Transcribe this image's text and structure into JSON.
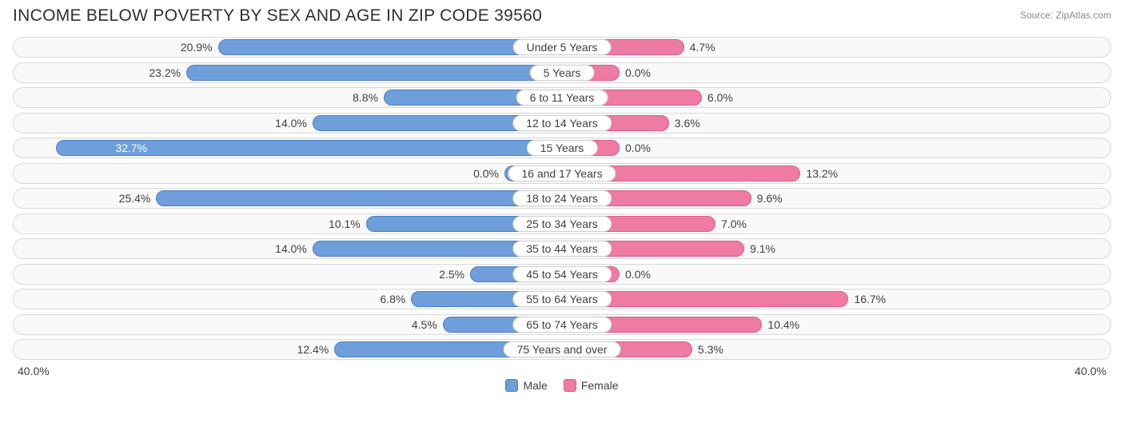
{
  "title": "INCOME BELOW POVERTY BY SEX AND AGE IN ZIP CODE 39560",
  "source": "Source: ZipAtlas.com",
  "axis_max": 40.0,
  "axis_label_left": "40.0%",
  "axis_label_right": "40.0%",
  "colors": {
    "male_fill": "#6e9fdb",
    "male_border": "#4d7ec2",
    "female_fill": "#ee7ba4",
    "female_border": "#dc5b8a",
    "row_border": "#d9d9d9",
    "row_bg": "#f9f9f9",
    "text": "#404040",
    "title_text": "#303030",
    "source_text": "#8a8a8a",
    "background": "#ffffff"
  },
  "legend": {
    "male": "Male",
    "female": "Female"
  },
  "pill_half_pct": 10.5,
  "rows": [
    {
      "category": "Under 5 Years",
      "male": 20.9,
      "female": 4.7
    },
    {
      "category": "5 Years",
      "male": 23.2,
      "female": 0.0
    },
    {
      "category": "6 to 11 Years",
      "male": 8.8,
      "female": 6.0
    },
    {
      "category": "12 to 14 Years",
      "male": 14.0,
      "female": 3.6
    },
    {
      "category": "15 Years",
      "male": 32.7,
      "female": 0.0
    },
    {
      "category": "16 and 17 Years",
      "male": 0.0,
      "female": 13.2
    },
    {
      "category": "18 to 24 Years",
      "male": 25.4,
      "female": 9.6
    },
    {
      "category": "25 to 34 Years",
      "male": 10.1,
      "female": 7.0
    },
    {
      "category": "35 to 44 Years",
      "male": 14.0,
      "female": 9.1
    },
    {
      "category": "45 to 54 Years",
      "male": 2.5,
      "female": 0.0
    },
    {
      "category": "55 to 64 Years",
      "male": 6.8,
      "female": 16.7
    },
    {
      "category": "65 to 74 Years",
      "male": 4.5,
      "female": 10.4
    },
    {
      "category": "75 Years and over",
      "male": 12.4,
      "female": 5.3
    }
  ]
}
